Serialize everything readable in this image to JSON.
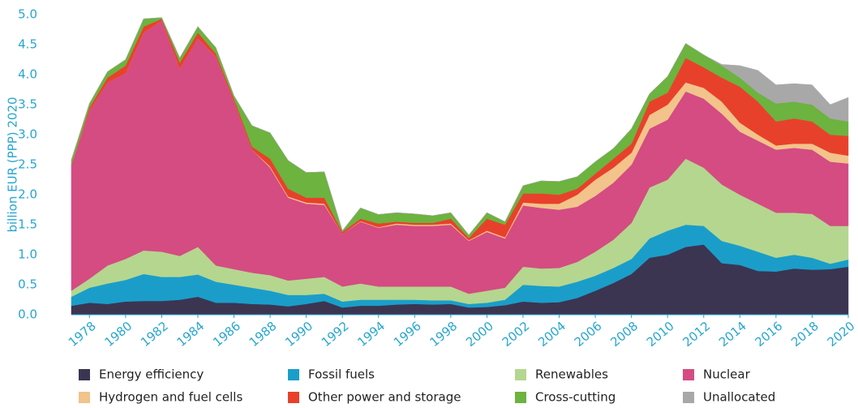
{
  "chart_data": {
    "type": "stacked_area",
    "y_label": "billion EUR (PPP) 2020",
    "x": [
      1977,
      1978,
      1979,
      1980,
      1981,
      1982,
      1983,
      1984,
      1985,
      1986,
      1987,
      1988,
      1989,
      1990,
      1991,
      1992,
      1993,
      1994,
      1995,
      1996,
      1997,
      1998,
      1999,
      2000,
      2001,
      2002,
      2003,
      2004,
      2005,
      2006,
      2007,
      2008,
      2009,
      2010,
      2011,
      2012,
      2013,
      2014,
      2015,
      2016,
      2017,
      2018,
      2019,
      2020
    ],
    "xlim": [
      1977,
      2020
    ],
    "xticks": [
      1978,
      1980,
      1982,
      1984,
      1986,
      1988,
      1990,
      1992,
      1994,
      1996,
      1998,
      2000,
      2002,
      2004,
      2006,
      2008,
      2010,
      2012,
      2014,
      2016,
      2018,
      2020
    ],
    "ylim": [
      0,
      5
    ],
    "yticks": [
      {
        "value": 0,
        "label": "0.0"
      },
      0.5,
      {
        "value": 1,
        "label": "1.0"
      },
      1.5,
      {
        "value": 2,
        "label": "2.0"
      },
      2.5,
      {
        "value": 3,
        "label": "3.0"
      },
      3.5,
      {
        "value": 4,
        "label": "4.0"
      },
      4.5,
      {
        "value": 5,
        "label": "5.0"
      }
    ],
    "series": [
      {
        "name": "Energy efficiency",
        "color": "#3b3552",
        "values": [
          0.15,
          0.2,
          0.18,
          0.22,
          0.23,
          0.23,
          0.25,
          0.3,
          0.2,
          0.2,
          0.18,
          0.17,
          0.14,
          0.18,
          0.23,
          0.12,
          0.15,
          0.15,
          0.17,
          0.18,
          0.17,
          0.18,
          0.12,
          0.13,
          0.16,
          0.22,
          0.2,
          0.21,
          0.28,
          0.4,
          0.53,
          0.68,
          0.95,
          1.0,
          1.13,
          1.17,
          0.86,
          0.83,
          0.73,
          0.72,
          0.77,
          0.75,
          0.76,
          0.8
        ]
      },
      {
        "name": "Fossil fuels",
        "color": "#1a9ec9",
        "values": [
          0.15,
          0.25,
          0.34,
          0.36,
          0.45,
          0.4,
          0.38,
          0.37,
          0.35,
          0.3,
          0.27,
          0.23,
          0.19,
          0.15,
          0.12,
          0.1,
          0.1,
          0.1,
          0.08,
          0.07,
          0.07,
          0.06,
          0.06,
          0.07,
          0.09,
          0.28,
          0.28,
          0.26,
          0.27,
          0.25,
          0.25,
          0.25,
          0.32,
          0.4,
          0.37,
          0.31,
          0.37,
          0.32,
          0.32,
          0.23,
          0.23,
          0.2,
          0.09,
          0.12
        ]
      },
      {
        "name": "Renewables",
        "color": "#b5d68f",
        "values": [
          0.1,
          0.15,
          0.3,
          0.35,
          0.39,
          0.42,
          0.35,
          0.46,
          0.27,
          0.26,
          0.25,
          0.26,
          0.24,
          0.27,
          0.28,
          0.25,
          0.27,
          0.22,
          0.22,
          0.22,
          0.23,
          0.23,
          0.17,
          0.2,
          0.2,
          0.3,
          0.29,
          0.31,
          0.33,
          0.4,
          0.47,
          0.6,
          0.85,
          0.85,
          1.1,
          0.97,
          0.94,
          0.85,
          0.8,
          0.75,
          0.7,
          0.73,
          0.63,
          0.56
        ]
      },
      {
        "name": "Nuclear",
        "color": "#d44c82",
        "values": [
          2.1,
          2.8,
          3.05,
          3.09,
          3.63,
          3.85,
          3.12,
          3.47,
          3.48,
          2.79,
          2.05,
          1.79,
          1.38,
          1.25,
          1.2,
          0.88,
          1.03,
          0.98,
          1.03,
          1.01,
          1.01,
          1.03,
          0.88,
          0.98,
          0.82,
          1.02,
          1.01,
          0.97,
          0.92,
          0.93,
          0.95,
          0.97,
          0.98,
          1.0,
          1.12,
          1.15,
          1.18,
          1.05,
          1.05,
          1.05,
          1.08,
          1.07,
          1.07,
          1.04
        ]
      },
      {
        "name": "Hydrogen and fuel cells",
        "color": "#f2c38b",
        "values": [
          0,
          0,
          0,
          0,
          0,
          0,
          0,
          0,
          0,
          0,
          0,
          0.02,
          0.02,
          0.02,
          0.02,
          0,
          0.01,
          0.01,
          0.02,
          0.02,
          0.02,
          0.02,
          0.01,
          0.02,
          0.02,
          0.05,
          0.07,
          0.1,
          0.2,
          0.27,
          0.25,
          0.2,
          0.23,
          0.25,
          0.15,
          0.18,
          0.2,
          0.15,
          0.1,
          0.07,
          0.07,
          0.1,
          0.15,
          0.13
        ]
      },
      {
        "name": "Other power and storage",
        "color": "#e8412b",
        "values": [
          0,
          0.05,
          0.08,
          0.13,
          0.1,
          0.03,
          0.1,
          0.1,
          0.05,
          0.05,
          0.05,
          0.13,
          0.13,
          0.08,
          0.1,
          0.03,
          0.04,
          0.06,
          0.03,
          0.03,
          0.03,
          0.08,
          0.04,
          0.2,
          0.21,
          0.15,
          0.17,
          0.15,
          0.1,
          0.1,
          0.15,
          0.15,
          0.22,
          0.2,
          0.41,
          0.34,
          0.4,
          0.6,
          0.55,
          0.4,
          0.42,
          0.37,
          0.3,
          0.33
        ]
      },
      {
        "name": "Cross-cutting",
        "color": "#6cb33f",
        "values": [
          0.08,
          0.07,
          0.1,
          0.1,
          0.13,
          0.02,
          0.08,
          0.1,
          0.1,
          0.05,
          0.35,
          0.43,
          0.47,
          0.42,
          0.43,
          0.02,
          0.18,
          0.15,
          0.15,
          0.15,
          0.12,
          0.1,
          0.05,
          0.1,
          0.05,
          0.13,
          0.21,
          0.22,
          0.2,
          0.2,
          0.17,
          0.25,
          0.13,
          0.27,
          0.24,
          0.21,
          0.2,
          0.15,
          0.15,
          0.3,
          0.28,
          0.28,
          0.27,
          0.24
        ]
      },
      {
        "name": "Unallocated",
        "color": "#a8a8a8",
        "values": [
          0,
          0,
          0,
          0,
          0,
          0,
          0,
          0,
          0,
          0,
          0,
          0,
          0,
          0,
          0,
          0,
          0,
          0,
          0,
          0,
          0,
          0,
          0,
          0,
          0,
          0,
          0,
          0,
          0,
          0,
          0,
          0,
          0,
          0,
          0,
          0,
          0.02,
          0.2,
          0.37,
          0.31,
          0.3,
          0.33,
          0.23,
          0.4
        ]
      }
    ]
  }
}
